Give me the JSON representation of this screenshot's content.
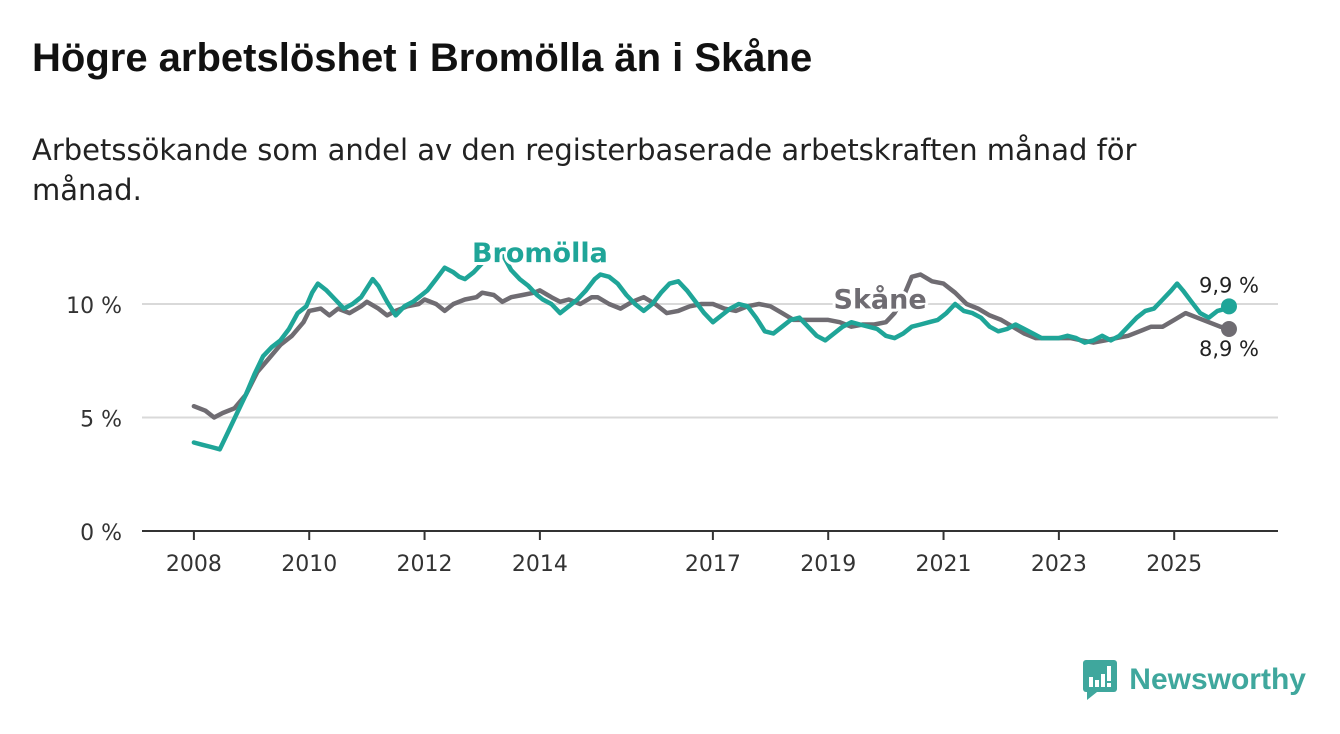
{
  "title": "Högre arbetslöshet i Bromölla än i Skåne",
  "subtitle": "Arbetssökande som andel av den registerbaserade arbetskraften månad för månad.",
  "brand": {
    "name": "Newsworthy"
  },
  "chart_data": {
    "type": "line",
    "x_unit": "year",
    "xlim": [
      2007.1,
      2026.8
    ],
    "ylim": [
      0,
      11.5
    ],
    "x_ticks": [
      {
        "value": 2008,
        "label": "2008"
      },
      {
        "value": 2010,
        "label": "2010"
      },
      {
        "value": 2012,
        "label": "2012"
      },
      {
        "value": 2014,
        "label": "2014"
      },
      {
        "value": 2017,
        "label": "2017"
      },
      {
        "value": 2019,
        "label": "2019"
      },
      {
        "value": 2021,
        "label": "2021"
      },
      {
        "value": 2023,
        "label": "2023"
      },
      {
        "value": 2025,
        "label": "2025"
      }
    ],
    "y_ticks": [
      {
        "value": 0,
        "label": "0 %"
      },
      {
        "value": 5,
        "label": "5 %"
      },
      {
        "value": 10,
        "label": "10 %"
      }
    ],
    "series": [
      {
        "name": "Skåne",
        "color": "#6f6c72",
        "end_label": "8,9 %",
        "x": [
          2008.0,
          2008.2,
          2008.35,
          2008.5,
          2008.7,
          2008.9,
          2009.1,
          2009.3,
          2009.5,
          2009.7,
          2009.9,
          2010.0,
          2010.2,
          2010.35,
          2010.5,
          2010.7,
          2010.9,
          2011.0,
          2011.2,
          2011.35,
          2011.5,
          2011.7,
          2011.9,
          2012.0,
          2012.2,
          2012.35,
          2012.5,
          2012.7,
          2012.9,
          2013.0,
          2013.2,
          2013.35,
          2013.5,
          2013.7,
          2013.9,
          2014.0,
          2014.2,
          2014.35,
          2014.5,
          2014.7,
          2014.9,
          2015.0,
          2015.2,
          2015.4,
          2015.6,
          2015.8,
          2016.0,
          2016.2,
          2016.4,
          2016.6,
          2016.8,
          2017.0,
          2017.2,
          2017.4,
          2017.6,
          2017.8,
          2018.0,
          2018.2,
          2018.4,
          2018.6,
          2018.8,
          2019.0,
          2019.2,
          2019.4,
          2019.6,
          2019.8,
          2020.0,
          2020.15,
          2020.3,
          2020.45,
          2020.6,
          2020.8,
          2021.0,
          2021.2,
          2021.4,
          2021.6,
          2021.8,
          2022.0,
          2022.2,
          2022.4,
          2022.6,
          2022.8,
          2023.0,
          2023.2,
          2023.4,
          2023.6,
          2023.8,
          2024.0,
          2024.2,
          2024.4,
          2024.6,
          2024.8,
          2025.0,
          2025.2,
          2025.4,
          2025.6,
          2025.8,
          2025.95
        ],
        "y": [
          5.5,
          5.3,
          5.0,
          5.2,
          5.4,
          6.0,
          7.0,
          7.6,
          8.2,
          8.6,
          9.2,
          9.7,
          9.8,
          9.5,
          9.8,
          9.6,
          9.9,
          10.1,
          9.8,
          9.5,
          9.7,
          9.9,
          10.0,
          10.2,
          10.0,
          9.7,
          10.0,
          10.2,
          10.3,
          10.5,
          10.4,
          10.1,
          10.3,
          10.4,
          10.5,
          10.6,
          10.3,
          10.1,
          10.2,
          10.0,
          10.3,
          10.3,
          10.0,
          9.8,
          10.1,
          10.3,
          10.0,
          9.6,
          9.7,
          9.9,
          10.0,
          10.0,
          9.8,
          9.7,
          9.9,
          10.0,
          9.9,
          9.6,
          9.3,
          9.3,
          9.3,
          9.3,
          9.2,
          9.0,
          9.1,
          9.1,
          9.2,
          9.6,
          10.3,
          11.2,
          11.3,
          11.0,
          10.9,
          10.5,
          10.0,
          9.8,
          9.5,
          9.3,
          9.0,
          8.7,
          8.5,
          8.5,
          8.5,
          8.5,
          8.4,
          8.3,
          8.4,
          8.5,
          8.6,
          8.8,
          9.0,
          9.0,
          9.3,
          9.6,
          9.4,
          9.2,
          9.0,
          8.9
        ]
      },
      {
        "name": "Bromölla",
        "color": "#1fa598",
        "end_label": "9,9 %",
        "x": [
          2008.0,
          2008.15,
          2008.3,
          2008.45,
          2008.6,
          2008.75,
          2008.9,
          2009.05,
          2009.2,
          2009.35,
          2009.5,
          2009.65,
          2009.8,
          2009.95,
          2010.05,
          2010.15,
          2010.3,
          2010.45,
          2010.6,
          2010.75,
          2010.9,
          2011.0,
          2011.1,
          2011.2,
          2011.35,
          2011.5,
          2011.65,
          2011.8,
          2011.95,
          2012.05,
          2012.2,
          2012.35,
          2012.5,
          2012.6,
          2012.7,
          2012.85,
          2013.0,
          2013.1,
          2013.2,
          2013.35,
          2013.5,
          2013.65,
          2013.8,
          2013.95,
          2014.05,
          2014.2,
          2014.35,
          2014.5,
          2014.65,
          2014.8,
          2014.95,
          2015.05,
          2015.2,
          2015.35,
          2015.5,
          2015.65,
          2015.8,
          2015.95,
          2016.1,
          2016.25,
          2016.4,
          2016.55,
          2016.7,
          2016.85,
          2017.0,
          2017.15,
          2017.3,
          2017.45,
          2017.6,
          2017.75,
          2017.9,
          2018.05,
          2018.2,
          2018.35,
          2018.5,
          2018.65,
          2018.8,
          2018.95,
          2019.1,
          2019.25,
          2019.4,
          2019.55,
          2019.7,
          2019.85,
          2020.0,
          2020.15,
          2020.3,
          2020.45,
          2020.6,
          2020.75,
          2020.9,
          2021.05,
          2021.2,
          2021.35,
          2021.5,
          2021.65,
          2021.8,
          2021.95,
          2022.1,
          2022.25,
          2022.4,
          2022.55,
          2022.7,
          2022.85,
          2023.0,
          2023.15,
          2023.3,
          2023.45,
          2023.6,
          2023.75,
          2023.9,
          2024.05,
          2024.2,
          2024.35,
          2024.5,
          2024.65,
          2024.8,
          2024.95,
          2025.05,
          2025.15,
          2025.3,
          2025.45,
          2025.6,
          2025.75,
          2025.9,
          2025.95
        ],
        "y": [
          3.9,
          3.8,
          3.7,
          3.6,
          4.4,
          5.2,
          6.0,
          6.9,
          7.7,
          8.1,
          8.4,
          8.9,
          9.6,
          9.9,
          10.5,
          10.9,
          10.6,
          10.2,
          9.8,
          10.0,
          10.3,
          10.7,
          11.1,
          10.8,
          10.1,
          9.5,
          9.9,
          10.1,
          10.4,
          10.6,
          11.1,
          11.6,
          11.4,
          11.2,
          11.1,
          11.4,
          11.8,
          12.2,
          12.5,
          12.2,
          11.5,
          11.1,
          10.8,
          10.4,
          10.2,
          10.0,
          9.6,
          9.9,
          10.2,
          10.6,
          11.1,
          11.3,
          11.2,
          10.9,
          10.4,
          10.0,
          9.7,
          10.0,
          10.5,
          10.9,
          11.0,
          10.6,
          10.1,
          9.6,
          9.2,
          9.5,
          9.8,
          10.0,
          9.9,
          9.4,
          8.8,
          8.7,
          9.0,
          9.3,
          9.4,
          9.0,
          8.6,
          8.4,
          8.7,
          9.0,
          9.2,
          9.1,
          9.0,
          8.9,
          8.6,
          8.5,
          8.7,
          9.0,
          9.1,
          9.2,
          9.3,
          9.6,
          10.0,
          9.7,
          9.6,
          9.4,
          9.0,
          8.8,
          8.9,
          9.1,
          8.9,
          8.7,
          8.5,
          8.5,
          8.5,
          8.6,
          8.5,
          8.3,
          8.4,
          8.6,
          8.4,
          8.6,
          9.0,
          9.4,
          9.7,
          9.8,
          10.2,
          10.6,
          10.9,
          10.6,
          10.1,
          9.6,
          9.4,
          9.7,
          9.8,
          9.9
        ]
      }
    ],
    "annotations": [
      {
        "series": "Bromölla",
        "label": "Bromölla",
        "x": 2014.0,
        "y": 11.85
      },
      {
        "series": "Skåne",
        "label": "Skåne",
        "x": 2019.9,
        "y": 9.8
      }
    ],
    "legend": "inline"
  }
}
